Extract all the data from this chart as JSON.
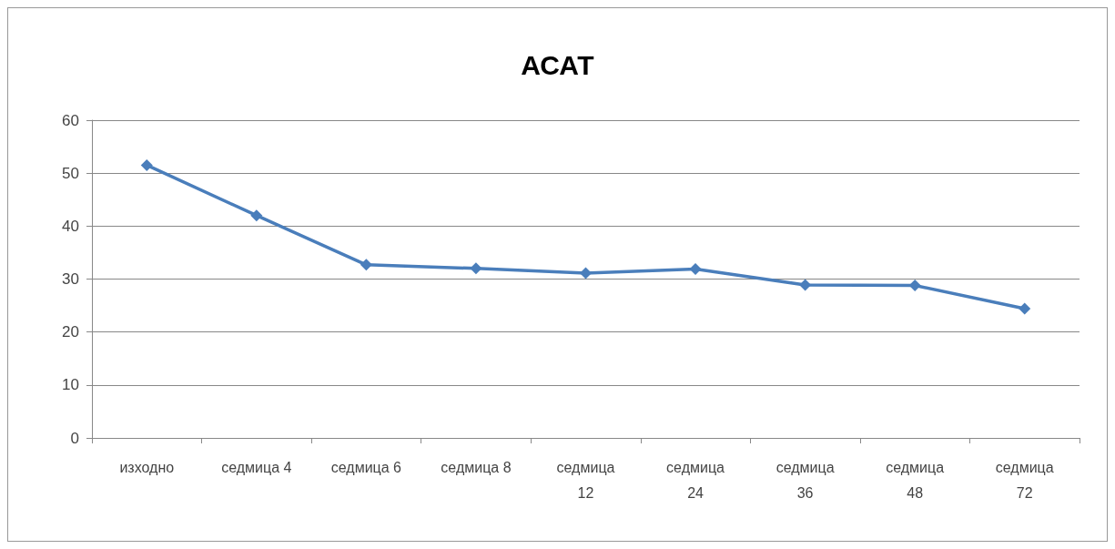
{
  "chart_data": {
    "type": "line",
    "title": "АСАТ",
    "categories": [
      "изходно",
      "седмица 4",
      "седмица 6",
      "седмица 8",
      "седмица 12",
      "седмица 24",
      "седмица 36",
      "седмица 48",
      "седмица 72"
    ],
    "series": [
      {
        "color": "#4a7ebb",
        "values": [
          51.5,
          42,
          32.7,
          32,
          31.1,
          31.9,
          28.9,
          28.8,
          24.4
        ]
      }
    ],
    "ylim": [
      0,
      60
    ],
    "yticks": [
      0,
      10,
      20,
      30,
      40,
      50,
      60
    ],
    "grid": "y",
    "marker": "diamond",
    "line_style": "solid"
  }
}
